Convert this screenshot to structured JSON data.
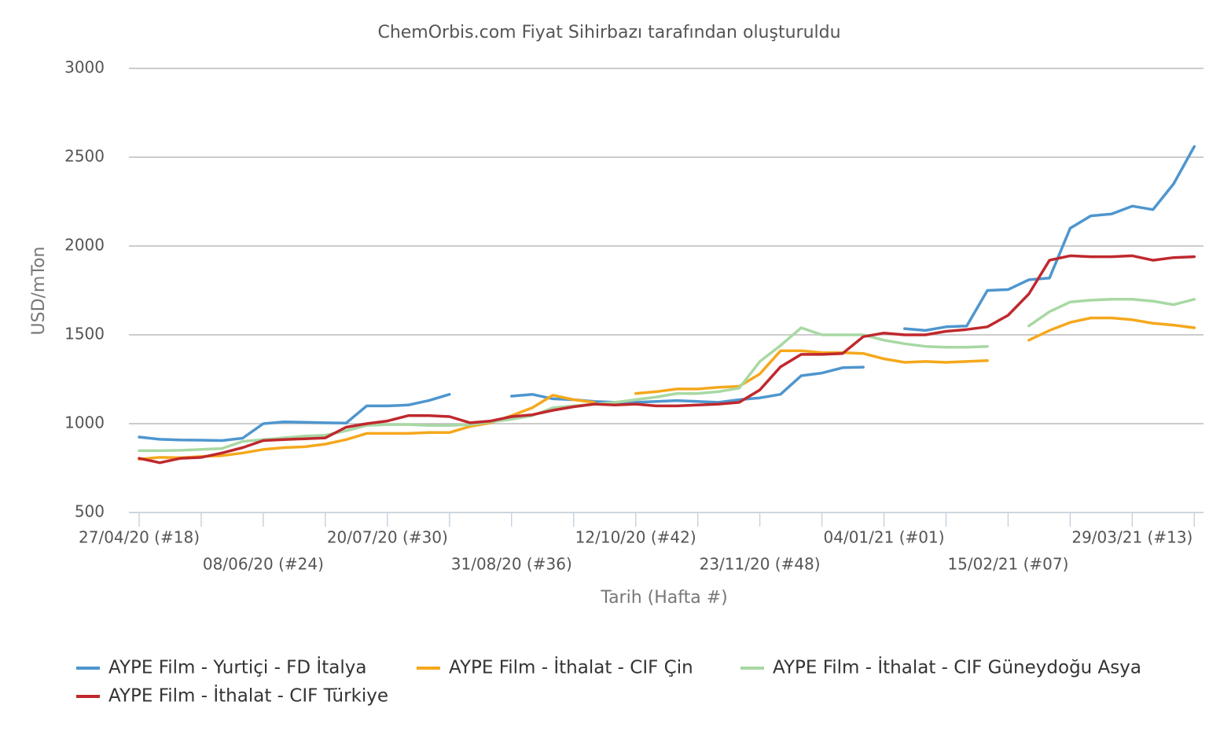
{
  "chart_data": {
    "type": "line",
    "title": "ChemOrbis.com Fiyat Sihirbazı tarafından oluşturuldu",
    "y_label": "USD/mTon",
    "x_label": "Tarih (Hafta #)",
    "categories": [
      "27/04/20 (#18)",
      null,
      null,
      null,
      null,
      null,
      "08/06/20 (#24)",
      null,
      null,
      null,
      null,
      null,
      "20/07/20 (#30)",
      null,
      null,
      null,
      null,
      null,
      "31/08/20 (#36)",
      null,
      null,
      null,
      null,
      null,
      "12/10/20 (#42)",
      null,
      null,
      null,
      null,
      null,
      "23/11/20 (#48)",
      null,
      null,
      null,
      null,
      null,
      "04/01/21 (#01)",
      null,
      null,
      null,
      null,
      null,
      "15/02/21 (#07)",
      null,
      null,
      null,
      null,
      null,
      "29/03/21 (#13)",
      null,
      null,
      null
    ],
    "ylim": [
      500,
      3000
    ],
    "yticks": [
      500,
      1000,
      1500,
      2000,
      2500,
      3000
    ],
    "grid": true,
    "legend": "bottom",
    "series": [
      {
        "name": "AYPE Film - Yurtiçi  - FD İtalya",
        "color": "#4e96cf",
        "values": [
          925,
          912,
          908,
          907,
          905,
          918,
          1000,
          1010,
          1008,
          1005,
          1003,
          1100,
          1100,
          1105,
          1130,
          1165,
          null,
          null,
          1155,
          1165,
          1140,
          1135,
          1125,
          1120,
          1120,
          1125,
          1130,
          1125,
          1120,
          1135,
          1145,
          1165,
          1270,
          1285,
          1315,
          1318,
          null,
          1535,
          1525,
          1545,
          1550,
          1750,
          1755,
          1810,
          1820,
          2100,
          2170,
          2180,
          2225,
          2205,
          2350,
          2560
        ]
      },
      {
        "name": "AYPE Film - İthalat  - CIF Çin",
        "color": "#f5a81c",
        "values": [
          800,
          810,
          808,
          815,
          820,
          835,
          855,
          865,
          870,
          885,
          910,
          945,
          945,
          945,
          950,
          950,
          985,
          1005,
          1045,
          1090,
          1160,
          1135,
          1120,
          null,
          1170,
          1180,
          1195,
          1195,
          1205,
          1210,
          1280,
          1410,
          1410,
          1400,
          1400,
          1395,
          1365,
          1345,
          1350,
          1345,
          1350,
          1355,
          null,
          1470,
          1525,
          1570,
          1595,
          1595,
          1585,
          1565,
          1555,
          1540
        ]
      },
      {
        "name": "AYPE Film - İthalat  - CIF Güneydoğu Asya",
        "color": "#a8d8a3",
        "values": [
          848,
          848,
          850,
          855,
          860,
          900,
          910,
          920,
          930,
          935,
          960,
          990,
          995,
          995,
          990,
          990,
          995,
          1010,
          1025,
          1045,
          1090,
          1100,
          1110,
          1120,
          1135,
          1150,
          1170,
          1170,
          1180,
          1200,
          1350,
          1440,
          1540,
          1500,
          1500,
          1500,
          1470,
          1450,
          1435,
          1430,
          1430,
          1435,
          null,
          1550,
          1630,
          1685,
          1695,
          1700,
          1700,
          1690,
          1670,
          1700
        ]
      },
      {
        "name": "AYPE Film - İthalat  - CIF Türkiye",
        "color": "#c0282d",
        "values": [
          805,
          780,
          805,
          810,
          835,
          865,
          905,
          910,
          915,
          920,
          980,
          1000,
          1015,
          1045,
          1045,
          1040,
          1005,
          1015,
          1040,
          1050,
          1075,
          1095,
          1110,
          1105,
          1110,
          1100,
          1100,
          1105,
          1110,
          1120,
          1190,
          1320,
          1390,
          1390,
          1395,
          1490,
          1510,
          1500,
          1500,
          1520,
          1530,
          1545,
          1610,
          1730,
          1920,
          1945,
          1940,
          1940,
          1945,
          1920,
          1935,
          1940
        ]
      }
    ]
  }
}
